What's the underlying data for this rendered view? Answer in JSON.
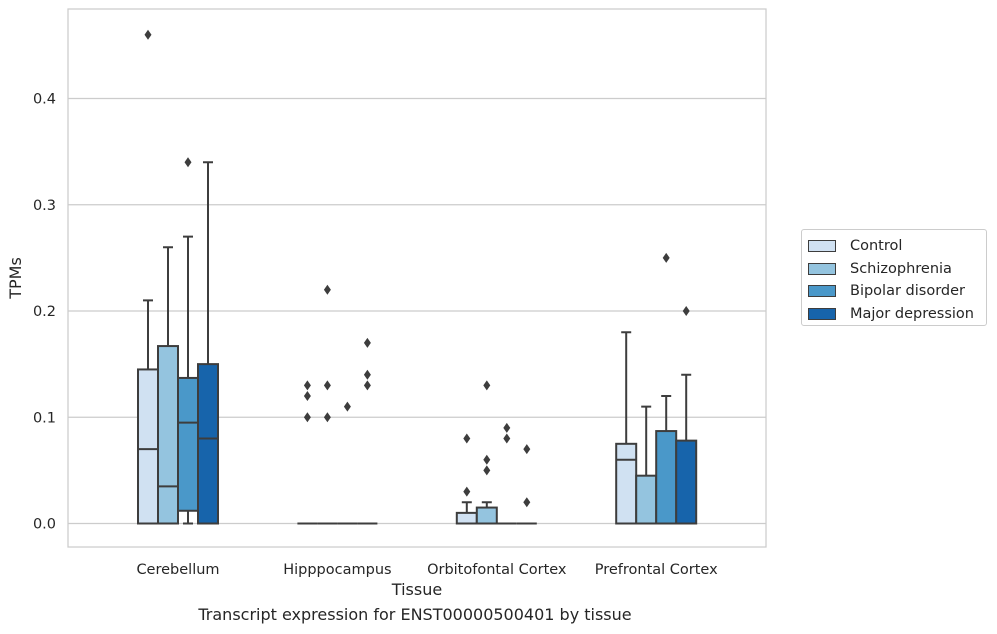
{
  "chart_data": {
    "type": "box",
    "xlabel": "Tissue",
    "ylabel": "TPMs",
    "caption": "Transcript expression for ENST00000500401 by tissue",
    "categories": [
      "Cerebellum",
      "Hipppocampus",
      "Orbitofontal Cortex",
      "Prefrontal Cortex"
    ],
    "yticks": [
      "0.0",
      "0.1",
      "0.2",
      "0.3",
      "0.4"
    ],
    "ylim": [
      -0.022,
      0.483
    ],
    "grid": true,
    "legend_position": "right",
    "series": [
      {
        "name": "Control",
        "color": "#d0e1f2",
        "boxes": [
          {
            "q1": 0.0,
            "median": 0.07,
            "q3": 0.145,
            "whisker_low": 0.0,
            "whisker_high": 0.21,
            "outliers": [
              0.46
            ]
          },
          {
            "q1": 0.0,
            "median": 0.0,
            "q3": 0.0,
            "whisker_low": 0.0,
            "whisker_high": 0.0,
            "outliers": [
              0.1,
              0.12,
              0.13
            ]
          },
          {
            "q1": 0.0,
            "median": 0.0,
            "q3": 0.01,
            "whisker_low": 0.0,
            "whisker_high": 0.02,
            "outliers": [
              0.03,
              0.08
            ]
          },
          {
            "q1": 0.0,
            "median": 0.06,
            "q3": 0.075,
            "whisker_low": 0.0,
            "whisker_high": 0.18,
            "outliers": []
          }
        ]
      },
      {
        "name": "Schizophrenia",
        "color": "#94c4df",
        "boxes": [
          {
            "q1": 0.0,
            "median": 0.035,
            "q3": 0.167,
            "whisker_low": 0.0,
            "whisker_high": 0.26,
            "outliers": []
          },
          {
            "q1": 0.0,
            "median": 0.0,
            "q3": 0.0,
            "whisker_low": 0.0,
            "whisker_high": 0.0,
            "outliers": [
              0.1,
              0.13,
              0.22
            ]
          },
          {
            "q1": 0.0,
            "median": 0.0,
            "q3": 0.015,
            "whisker_low": 0.0,
            "whisker_high": 0.02,
            "outliers": [
              0.05,
              0.06,
              0.13
            ]
          },
          {
            "q1": 0.0,
            "median": 0.0,
            "q3": 0.045,
            "whisker_low": 0.0,
            "whisker_high": 0.11,
            "outliers": []
          }
        ]
      },
      {
        "name": "Bipolar disorder",
        "color": "#4a98c9",
        "boxes": [
          {
            "q1": 0.012,
            "median": 0.095,
            "q3": 0.137,
            "whisker_low": 0.0,
            "whisker_high": 0.27,
            "outliers": [
              0.34
            ]
          },
          {
            "q1": 0.0,
            "median": 0.0,
            "q3": 0.0,
            "whisker_low": 0.0,
            "whisker_high": 0.0,
            "outliers": [
              0.11
            ]
          },
          {
            "q1": 0.0,
            "median": 0.0,
            "q3": 0.0,
            "whisker_low": 0.0,
            "whisker_high": 0.0,
            "outliers": [
              0.08,
              0.09
            ]
          },
          {
            "q1": 0.0,
            "median": 0.0,
            "q3": 0.087,
            "whisker_low": 0.0,
            "whisker_high": 0.12,
            "outliers": [
              0.25
            ]
          }
        ]
      },
      {
        "name": "Major depression",
        "color": "#1764ab",
        "boxes": [
          {
            "q1": 0.0,
            "median": 0.08,
            "q3": 0.15,
            "whisker_low": 0.0,
            "whisker_high": 0.34,
            "outliers": []
          },
          {
            "q1": 0.0,
            "median": 0.0,
            "q3": 0.0,
            "whisker_low": 0.0,
            "whisker_high": 0.0,
            "outliers": [
              0.13,
              0.14,
              0.17
            ]
          },
          {
            "q1": 0.0,
            "median": 0.0,
            "q3": 0.0,
            "whisker_low": 0.0,
            "whisker_high": 0.0,
            "outliers": [
              0.02,
              0.07
            ]
          },
          {
            "q1": 0.0,
            "median": 0.0,
            "q3": 0.078,
            "whisker_low": 0.0,
            "whisker_high": 0.14,
            "outliers": [
              0.2
            ]
          }
        ]
      }
    ]
  }
}
